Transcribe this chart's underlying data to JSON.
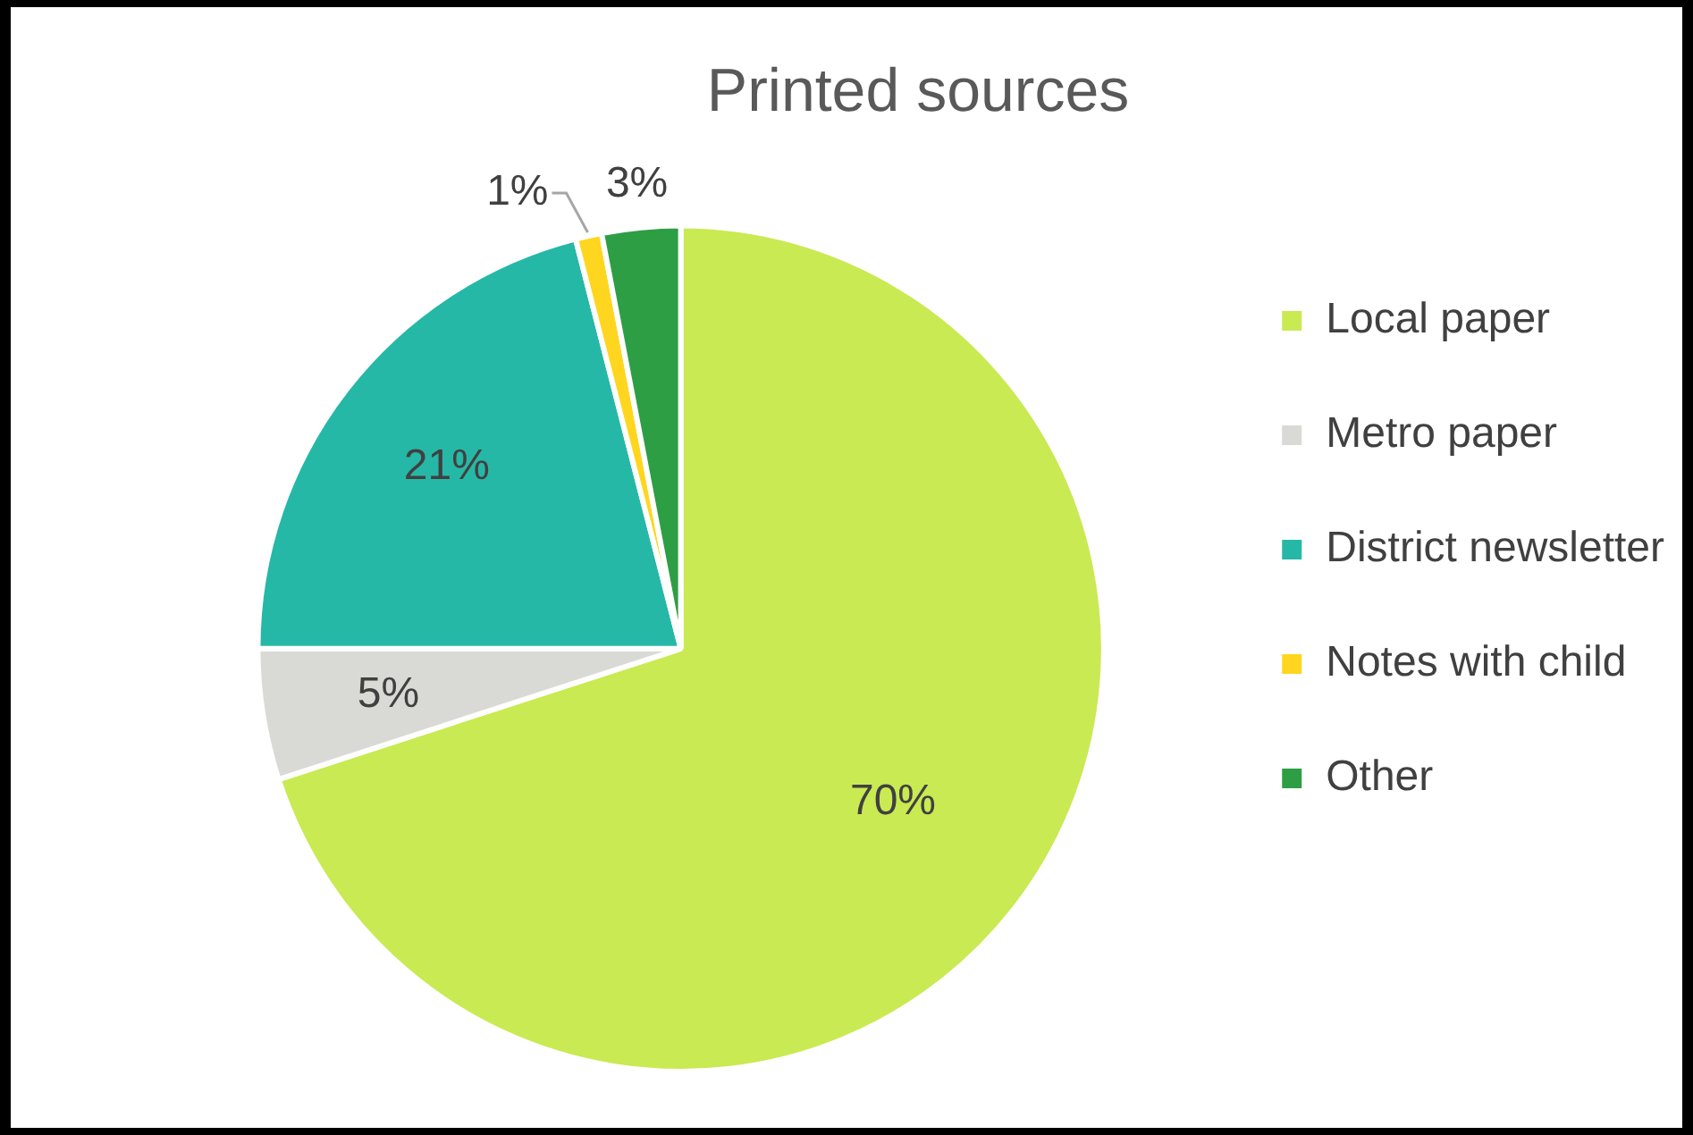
{
  "chart_data": {
    "type": "pie",
    "title": "Printed sources",
    "categories": [
      "Local paper",
      "Metro paper",
      "District newsletter",
      "Notes with child",
      "Other"
    ],
    "values": [
      70,
      5,
      21,
      1,
      3
    ],
    "value_labels": [
      "70%",
      "5%",
      "21%",
      "1%",
      "3%"
    ],
    "colors": [
      "#c9ea52",
      "#d9d9d6",
      "#26b8a6",
      "#ffd61f",
      "#2e9e44"
    ],
    "legend": "right"
  }
}
